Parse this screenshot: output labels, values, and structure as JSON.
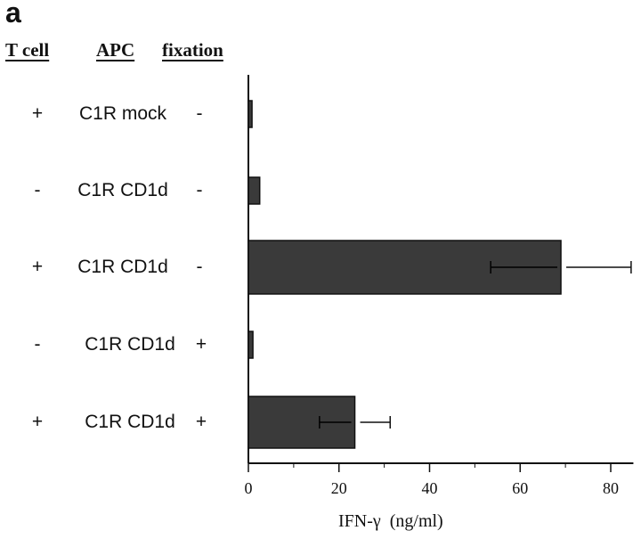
{
  "panel_label": "a",
  "headers": {
    "t_cell": "T cell",
    "apc": "APC",
    "fixation": "fixation"
  },
  "rows": [
    {
      "t_cell": "+",
      "apc": "C1R mock",
      "fixation": "-"
    },
    {
      "t_cell": "-",
      "apc": "C1R CD1d",
      "fixation": "-"
    },
    {
      "t_cell": "+",
      "apc": "C1R CD1d",
      "fixation": "-"
    },
    {
      "t_cell": "-",
      "apc": "C1R CD1d",
      "fixation": "+"
    },
    {
      "t_cell": "+",
      "apc": "C1R CD1d",
      "fixation": "+"
    }
  ],
  "chart_data": {
    "type": "bar",
    "orientation": "horizontal",
    "categories": [
      "C1R mock",
      "C1R CD1d",
      "C1R CD1d",
      "C1R CD1d",
      "C1R CD1d"
    ],
    "values": [
      0.8,
      2.5,
      69,
      1.0,
      23.5
    ],
    "error": [
      null,
      null,
      15.5,
      null,
      7.8
    ],
    "xlabel": "IFN-γ  (ng/ml)",
    "xlim": [
      0,
      85
    ],
    "xticks": [
      0,
      20,
      40,
      60,
      80
    ],
    "grid": false,
    "bar_color": "#3a3a3a"
  }
}
